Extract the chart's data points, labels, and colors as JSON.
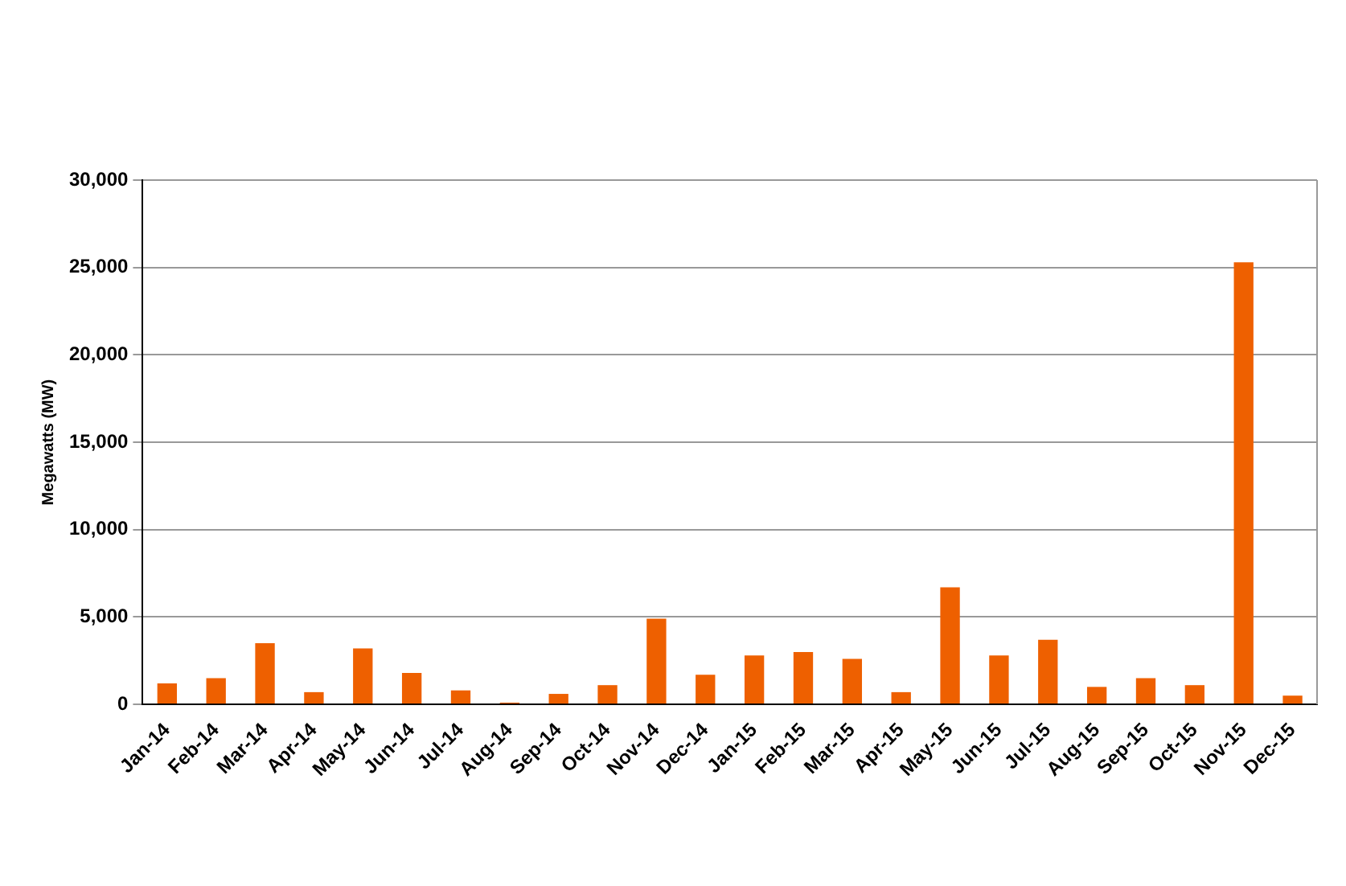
{
  "chart_data": {
    "type": "bar",
    "ylabel": "Megawatts (MW)",
    "categories": [
      "Jan-14",
      "Feb-14",
      "Mar-14",
      "Apr-14",
      "May-14",
      "Jun-14",
      "Jul-14",
      "Aug-14",
      "Sep-14",
      "Oct-14",
      "Nov-14",
      "Dec-14",
      "Jan-15",
      "Feb-15",
      "Mar-15",
      "Apr-15",
      "May-15",
      "Jun-15",
      "Jul-15",
      "Aug-15",
      "Sep-15",
      "Oct-15",
      "Nov-15",
      "Dec-15"
    ],
    "values": [
      1200,
      1500,
      3500,
      700,
      3200,
      1800,
      800,
      100,
      600,
      1100,
      4900,
      1700,
      2800,
      3000,
      2600,
      700,
      6700,
      2800,
      3700,
      1000,
      1500,
      1100,
      25300,
      500
    ],
    "color": "#ee6000",
    "ylim": [
      0,
      30000
    ],
    "yticks": [
      0,
      {
        "value": 5000,
        "label": "5,000"
      },
      {
        "value": 10000,
        "label": "10,000"
      },
      {
        "value": 15000,
        "label": "15,000"
      },
      {
        "value": 20000,
        "label": "20,000"
      },
      {
        "value": 25000,
        "label": "25,000"
      },
      {
        "value": 30000,
        "label": "30,000"
      }
    ],
    "grid": "y",
    "legend": false
  }
}
